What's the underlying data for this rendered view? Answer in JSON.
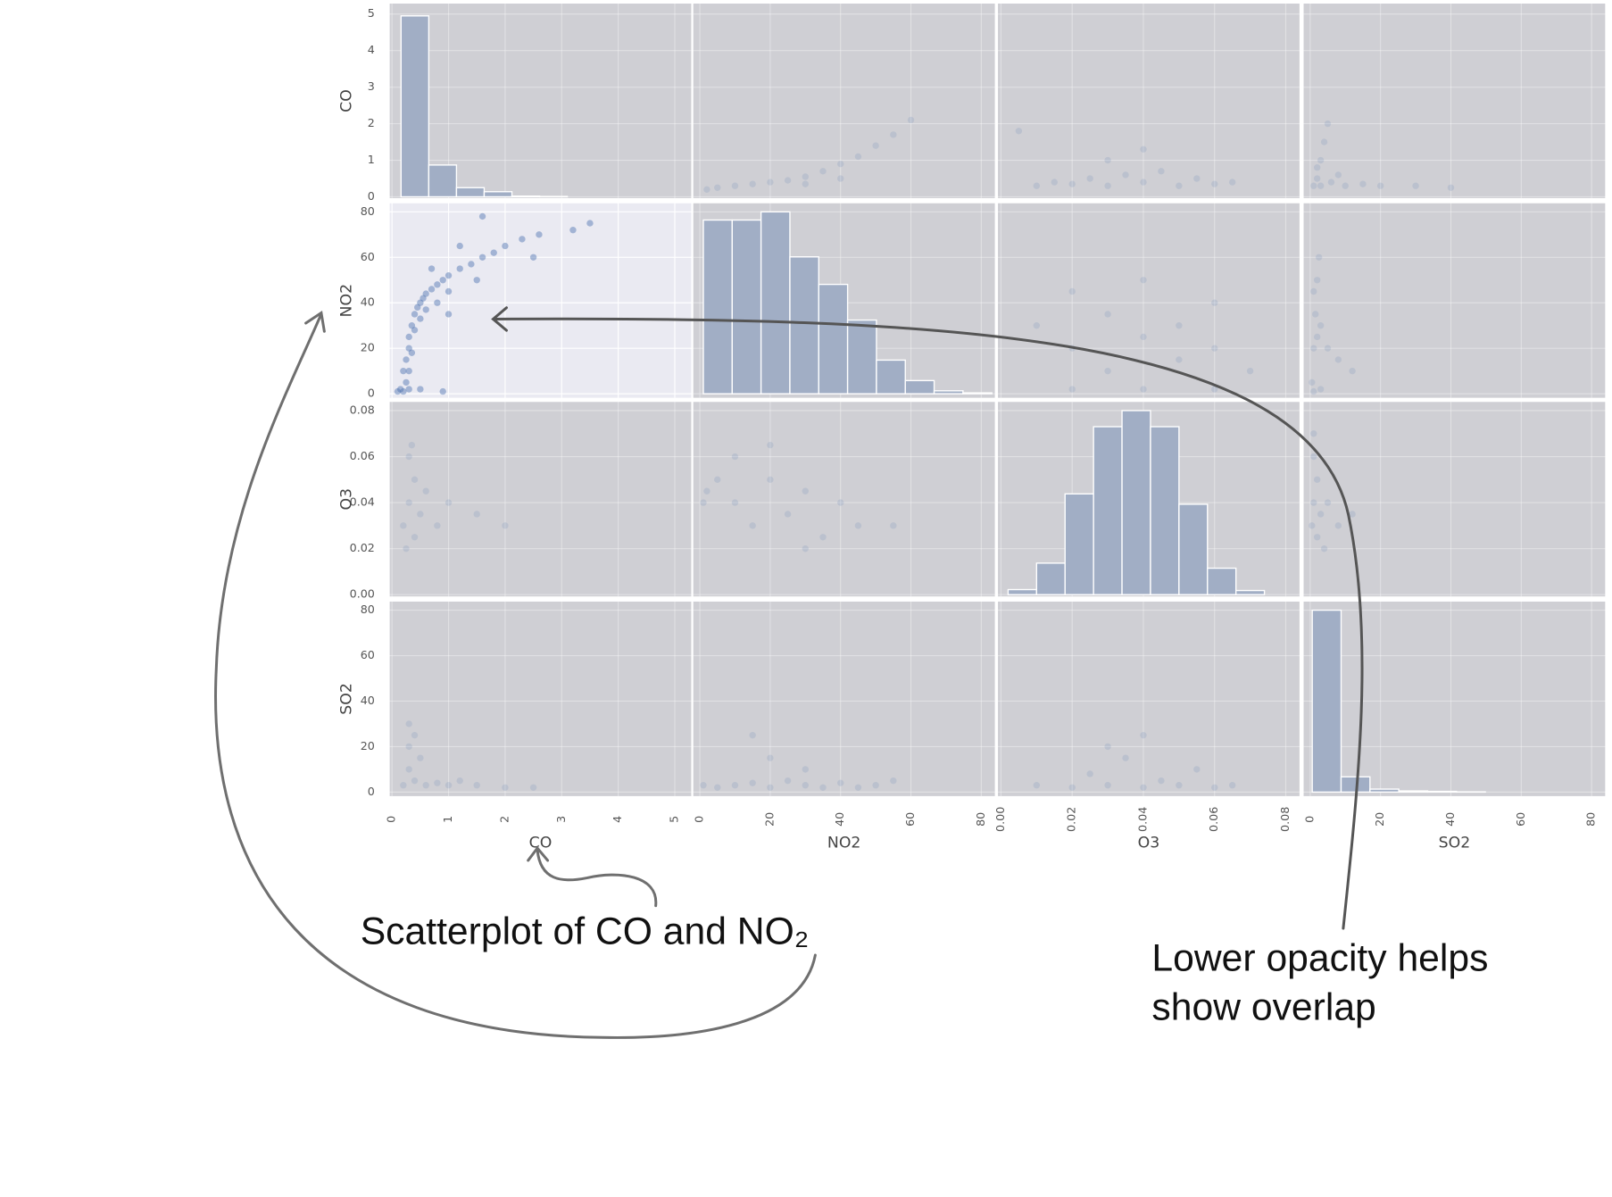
{
  "chart_data": {
    "type": "scatter_matrix",
    "variables": [
      "CO",
      "NO2",
      "O3",
      "SO2"
    ],
    "lims": [
      [
        -0.05,
        5.3
      ],
      [
        -2,
        84
      ],
      [
        -0.001,
        0.084
      ],
      [
        -2,
        84
      ]
    ],
    "ticks": [
      [
        0,
        1,
        2,
        3,
        4,
        5
      ],
      [
        0,
        20,
        40,
        60,
        80
      ],
      [
        {
          "value": 0,
          "label": "0.00"
        },
        {
          "value": 0.02,
          "label": "0.02"
        },
        {
          "value": 0.04,
          "label": "0.04"
        },
        {
          "value": 0.06,
          "label": "0.06"
        },
        {
          "value": 0.08,
          "label": "0.08"
        }
      ],
      [
        0,
        20,
        40,
        60,
        80
      ]
    ],
    "histograms": [
      {
        "bins": [
          0.16,
          0.65,
          1.14,
          1.63,
          2.12,
          2.61,
          3.1,
          3.59,
          4.08,
          4.57,
          5.06
        ],
        "counts": [
          4.95,
          0.87,
          0.25,
          0.14,
          0.02,
          0.01,
          0,
          0,
          0,
          0
        ]
      },
      {
        "bins": [
          1,
          9.2,
          17.4,
          25.6,
          33.8,
          42,
          50.2,
          58.4,
          66.6,
          74.8,
          83
        ],
        "counts": [
          76.4,
          76.4,
          80,
          60.2,
          48.1,
          32.4,
          14.8,
          5.8,
          1.3,
          0.4
        ]
      },
      {
        "bins": [
          0.002,
          0.01,
          0.018,
          0.026,
          0.034,
          0.042,
          0.05,
          0.058,
          0.066,
          0.074,
          0.082
        ],
        "counts": [
          0.0022,
          0.0137,
          0.0438,
          0.073,
          0.08,
          0.073,
          0.0393,
          0.0115,
          0.0018,
          0
        ]
      },
      {
        "bins": [
          0.6,
          8.8,
          17,
          25.2,
          33.4,
          41.6,
          49.8,
          58,
          66.2,
          74.4,
          82.6
        ],
        "counts": [
          80,
          6.7,
          1.3,
          0.5,
          0.3,
          0.1,
          0,
          0,
          0,
          0
        ]
      }
    ],
    "scatter": [
      [
        null,
        {
          "x": [
            2,
            5,
            10,
            15,
            20,
            25,
            30,
            35,
            40,
            45,
            50,
            55,
            60,
            30,
            40
          ],
          "y": [
            0.2,
            0.25,
            0.3,
            0.35,
            0.4,
            0.45,
            0.55,
            0.7,
            0.9,
            1.1,
            1.4,
            1.7,
            2.1,
            0.35,
            0.5
          ]
        },
        {
          "x": [
            0.01,
            0.015,
            0.02,
            0.025,
            0.03,
            0.035,
            0.04,
            0.045,
            0.05,
            0.055,
            0.06,
            0.065,
            0.03,
            0.04,
            0.005
          ],
          "y": [
            0.3,
            0.4,
            0.35,
            0.5,
            0.3,
            0.6,
            0.4,
            0.7,
            0.3,
            0.5,
            0.35,
            0.4,
            1.0,
            1.3,
            1.8
          ]
        },
        {
          "x": [
            1,
            2,
            3,
            4,
            5,
            2,
            6,
            10,
            15,
            20,
            30,
            40,
            3,
            8
          ],
          "y": [
            0.3,
            0.5,
            1.0,
            1.5,
            2.0,
            0.8,
            0.4,
            0.3,
            0.35,
            0.3,
            0.3,
            0.25,
            0.3,
            0.6
          ]
        }
      ],
      [
        {
          "x": [
            0.1,
            0.15,
            0.2,
            0.3,
            0.25,
            0.2,
            0.25,
            0.3,
            0.3,
            0.35,
            0.4,
            0.45,
            0.5,
            0.55,
            0.6,
            0.7,
            0.8,
            0.9,
            1.0,
            1.2,
            1.4,
            1.6,
            1.8,
            2.0,
            2.3,
            2.6,
            3.2,
            3.5,
            0.3,
            0.35,
            0.4,
            0.5,
            0.6,
            0.8,
            1.0,
            1.5,
            1.0,
            0.7,
            1.2,
            2.5,
            0.5,
            0.9,
            1.6
          ],
          "y": [
            1,
            2,
            1,
            2,
            5,
            10,
            15,
            20,
            25,
            30,
            35,
            38,
            40,
            42,
            44,
            46,
            48,
            50,
            52,
            55,
            57,
            60,
            62,
            65,
            68,
            70,
            72,
            75,
            10,
            18,
            28,
            33,
            37,
            40,
            45,
            50,
            35,
            55,
            65,
            60,
            2,
            1,
            78
          ],
          "alpha": 0.45,
          "background": "#eaeaf2"
        },
        null,
        {
          "x": [
            0.01,
            0.02,
            0.02,
            0.03,
            0.03,
            0.04,
            0.04,
            0.05,
            0.05,
            0.06,
            0.06,
            0.07,
            0.02,
            0.04,
            0.06
          ],
          "y": [
            30,
            45,
            20,
            35,
            10,
            25,
            50,
            30,
            15,
            20,
            40,
            10,
            2,
            2,
            2
          ]
        },
        {
          "x": [
            0.5,
            1,
            1.5,
            2,
            2.5,
            1,
            2,
            3,
            5,
            8,
            12,
            3,
            1
          ],
          "y": [
            5,
            20,
            35,
            50,
            60,
            45,
            25,
            30,
            20,
            15,
            10,
            2,
            1
          ]
        }
      ],
      [
        {
          "x": [
            0.2,
            0.3,
            0.4,
            0.3,
            0.5,
            0.4,
            0.6,
            0.8,
            1.0,
            1.5,
            0.25,
            0.35,
            2
          ],
          "y": [
            0.03,
            0.04,
            0.05,
            0.06,
            0.035,
            0.025,
            0.045,
            0.03,
            0.04,
            0.035,
            0.02,
            0.065,
            0.03
          ]
        },
        {
          "x": [
            1,
            2,
            5,
            10,
            15,
            20,
            25,
            30,
            35,
            40,
            45,
            55,
            10,
            30,
            20
          ],
          "y": [
            0.04,
            0.045,
            0.05,
            0.04,
            0.03,
            0.05,
            0.035,
            0.045,
            0.025,
            0.04,
            0.03,
            0.03,
            0.06,
            0.02,
            0.065
          ]
        },
        null,
        {
          "x": [
            0.5,
            1,
            2,
            3,
            1,
            2,
            5,
            8,
            4,
            12,
            1
          ],
          "y": [
            0.03,
            0.04,
            0.05,
            0.035,
            0.06,
            0.025,
            0.04,
            0.03,
            0.02,
            0.035,
            0.07
          ]
        }
      ],
      [
        {
          "x": [
            0.2,
            0.3,
            0.4,
            0.3,
            0.5,
            0.6,
            0.8,
            1.0,
            1.2,
            1.5,
            2,
            0.3,
            0.4,
            2.5
          ],
          "y": [
            3,
            10,
            5,
            20,
            15,
            3,
            4,
            3,
            5,
            3,
            2,
            30,
            25,
            2
          ]
        },
        {
          "x": [
            1,
            5,
            10,
            15,
            20,
            25,
            30,
            35,
            40,
            45,
            50,
            20,
            30,
            15,
            55
          ],
          "y": [
            3,
            2,
            3,
            4,
            2,
            5,
            3,
            2,
            4,
            2,
            3,
            15,
            10,
            25,
            5
          ]
        },
        {
          "x": [
            0.01,
            0.02,
            0.025,
            0.03,
            0.035,
            0.04,
            0.045,
            0.05,
            0.055,
            0.06,
            0.065,
            0.04,
            0.03
          ],
          "y": [
            3,
            2,
            8,
            3,
            15,
            2,
            5,
            3,
            10,
            2,
            3,
            25,
            20
          ]
        },
        null
      ]
    ],
    "panel_color": "#cfcfd4",
    "bar_color": "#a1aec5",
    "point_color": "#4c72b0",
    "point_alpha": 0.15,
    "grid": true,
    "annotations": [
      {
        "lines": [
          "Scatterplot of CO and NO₂"
        ]
      },
      {
        "lines": [
          "Lower opacity helps",
          "show overlap"
        ]
      }
    ]
  }
}
